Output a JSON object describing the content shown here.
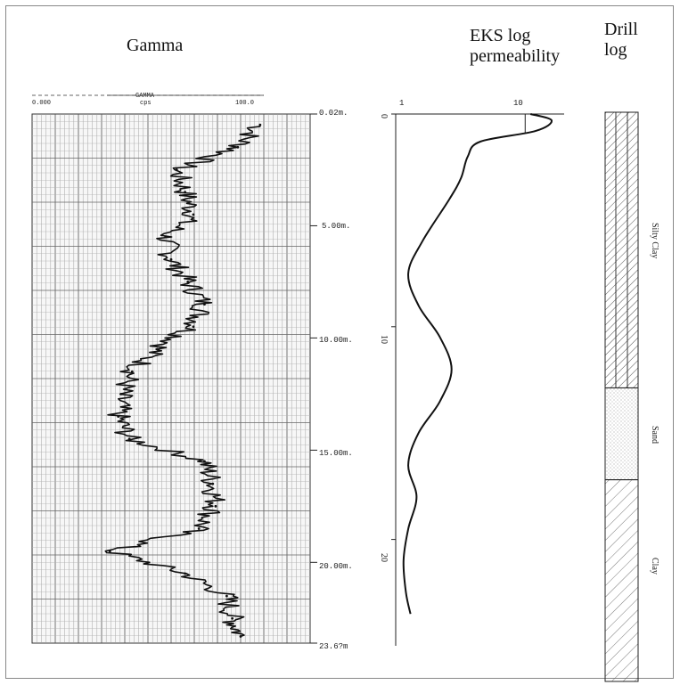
{
  "headers": {
    "gamma": "Gamma",
    "eks": "EKS log\npermeability",
    "drill": "Drill\nlog"
  },
  "chart_data": [
    {
      "type": "line",
      "panel": "gamma",
      "title": "Gamma",
      "axis_title": "GAMMA",
      "unit": "cps",
      "xlim": [
        0,
        100
      ],
      "x_tick_labels": [
        "0.000",
        "100.0"
      ],
      "ylim": [
        0.02,
        23.6
      ],
      "y_reversed": true,
      "depth_labels": [
        "0.02m.",
        "5.00m.",
        "10.00m.",
        "15.00m.",
        "20.00m.",
        "23.6?m"
      ],
      "depth_values": [
        0.02,
        5,
        10,
        15,
        20,
        23.6
      ],
      "depth": [
        0.5,
        1.5,
        2.5,
        3.5,
        4.5,
        5.5,
        6.5,
        7.5,
        8.5,
        9.5,
        10.5,
        11.5,
        12.5,
        13.5,
        14.5,
        15.5,
        16.5,
        17.5,
        18.5,
        19.5,
        20.5,
        21.5,
        22.5,
        23.3
      ],
      "values": [
        82,
        74,
        52,
        55,
        58,
        48,
        50,
        56,
        62,
        58,
        45,
        36,
        32,
        31,
        35,
        62,
        65,
        66,
        60,
        28,
        55,
        70,
        72,
        75
      ]
    },
    {
      "type": "line",
      "panel": "eks",
      "title": "EKS log permeability",
      "x_scale": "log",
      "xlim": [
        1,
        20
      ],
      "x_tick_labels": [
        "1",
        "10"
      ],
      "x_tick_values": [
        1,
        10
      ],
      "ylim": [
        0,
        25
      ],
      "y_reversed": true,
      "y_tick_labels": [
        "0",
        "10",
        "20"
      ],
      "y_tick_values": [
        0,
        10,
        20
      ],
      "depth": [
        0,
        0.3,
        0.8,
        1.3,
        2,
        3,
        4,
        6,
        7.5,
        9,
        10.5,
        12,
        13.5,
        15,
        16.5,
        18,
        19.5,
        21,
        22.5,
        23.5
      ],
      "values": [
        11,
        16,
        12,
        4.5,
        3.6,
        3.2,
        2.6,
        1.6,
        1.25,
        1.5,
        2.2,
        2.7,
        2.2,
        1.5,
        1.25,
        1.45,
        1.25,
        1.15,
        1.2,
        1.3
      ]
    },
    {
      "type": "table",
      "panel": "drill",
      "title": "Drill log",
      "layers": [
        {
          "name": "Silty Clay",
          "top": 0,
          "bottom": 12.3,
          "pattern": "hatch-dense"
        },
        {
          "name": "Sand",
          "top": 12.3,
          "bottom": 16.4,
          "pattern": "dots"
        },
        {
          "name": "Clay",
          "top": 16.4,
          "bottom": 25.4,
          "pattern": "hatch"
        }
      ]
    }
  ]
}
